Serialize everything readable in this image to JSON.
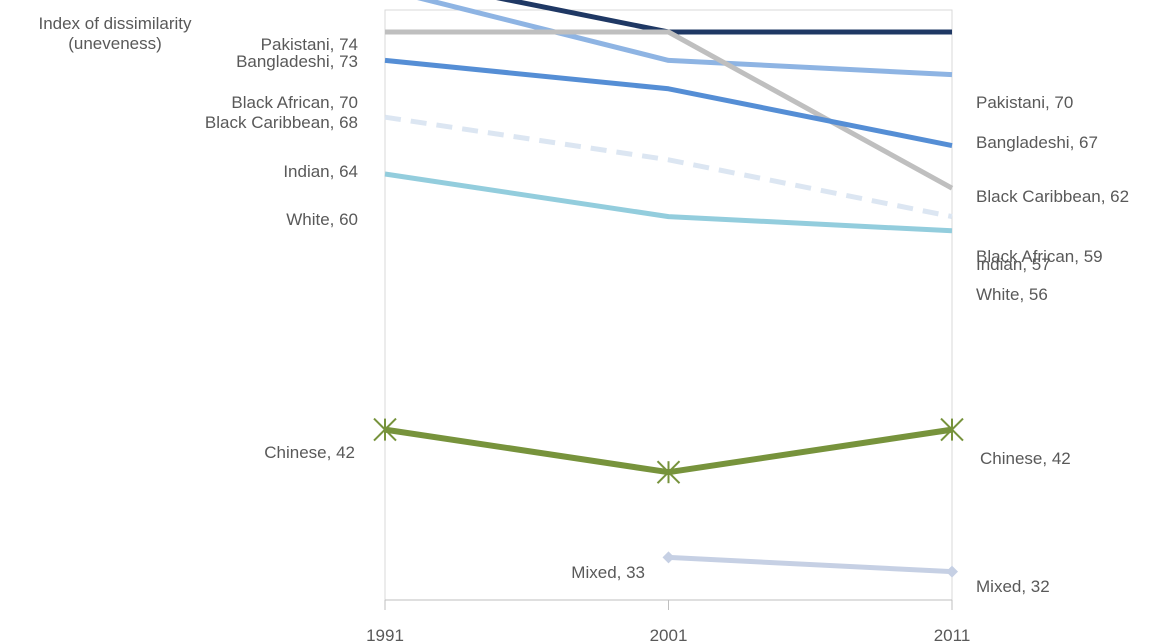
{
  "chart_data": {
    "type": "line",
    "ylabel_line1": "Index of dissimilarity",
    "ylabel_line2": "(uneveness)",
    "xlabel": "",
    "categories": [
      "1991",
      "2001",
      "2011"
    ],
    "ylim": [
      30,
      76
    ],
    "grid": false,
    "legend": "none (series labelled directly at line ends)",
    "series": [
      {
        "name": "Pakistani",
        "values": [
          74,
          70,
          70
        ],
        "color": "#1f3864",
        "dash": false,
        "marker": "none",
        "start_label": "Pakistani, 74",
        "end_label": "Pakistani, 70"
      },
      {
        "name": "Bangladeshi",
        "values": [
          73,
          68,
          67
        ],
        "color": "#8eb4e3",
        "dash": false,
        "marker": "none",
        "start_label": "Bangladeshi, 73",
        "end_label": "Bangladeshi, 67"
      },
      {
        "name": "Black African",
        "values": [
          70,
          70,
          59
        ],
        "color": "#bfbfbf",
        "dash": false,
        "marker": "none",
        "start_label": "Black African, 70",
        "end_label": "Black African, 59"
      },
      {
        "name": "Black Caribbean",
        "values": [
          68,
          66,
          62
        ],
        "color": "#558ed5",
        "dash": false,
        "marker": "none",
        "start_label": "Black Caribbean, 68",
        "end_label": "Black Caribbean, 62"
      },
      {
        "name": "Indian",
        "values": [
          64,
          61,
          57
        ],
        "color": "#dce6f2",
        "dash": true,
        "marker": "none",
        "start_label": "Indian, 64",
        "end_label": "Indian, 57"
      },
      {
        "name": "White",
        "values": [
          60,
          57,
          56
        ],
        "color": "#93cddd",
        "dash": false,
        "marker": "none",
        "start_label": "White, 60",
        "end_label": "White, 56"
      },
      {
        "name": "Chinese",
        "values": [
          42,
          39,
          42
        ],
        "color": "#77933c",
        "dash": false,
        "marker": "star",
        "start_label": "Chinese, 42",
        "end_label": "Chinese, 42"
      },
      {
        "name": "Mixed",
        "values": [
          null,
          33,
          32
        ],
        "color": "#c6d0e4",
        "dash": false,
        "marker": "diamond",
        "start_label": "Mixed, 33",
        "end_label": "Mixed, 32"
      }
    ]
  }
}
